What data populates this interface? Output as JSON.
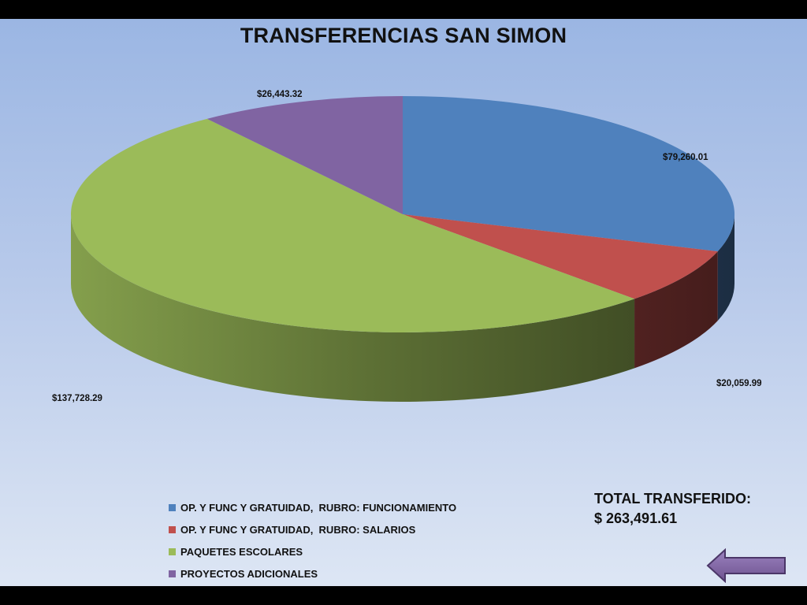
{
  "chart_data": {
    "type": "pie",
    "title": "TRANSFERENCIAS SAN SIMON",
    "slices": [
      {
        "name": "OP. Y FUNC Y GRATUIDAD,  RUBRO: FUNCIONAMIENTO",
        "value": 79260.01,
        "label": "$79,260.01",
        "color": "#4f81bd"
      },
      {
        "name": "OP. Y FUNC Y GRATUIDAD,  RUBRO: SALARIOS",
        "value": 20059.99,
        "label": "$20,059.99",
        "color": "#c0504d"
      },
      {
        "name": "PAQUETES ESCOLARES",
        "value": 137728.29,
        "label": "$137,728.29",
        "color": "#9bbb59"
      },
      {
        "name": "PROYECTOS ADICIONALES",
        "value": 26443.32,
        "label": "$26,443.32",
        "color": "#8064a2"
      }
    ],
    "style": "3d",
    "legend_position": "bottom-center"
  },
  "total": {
    "label": "TOTAL TRANSFERIDO:",
    "value": "$ 263,491.61"
  },
  "navigation": {
    "back_icon": "left-arrow-icon",
    "back_color": "#8064a2"
  }
}
